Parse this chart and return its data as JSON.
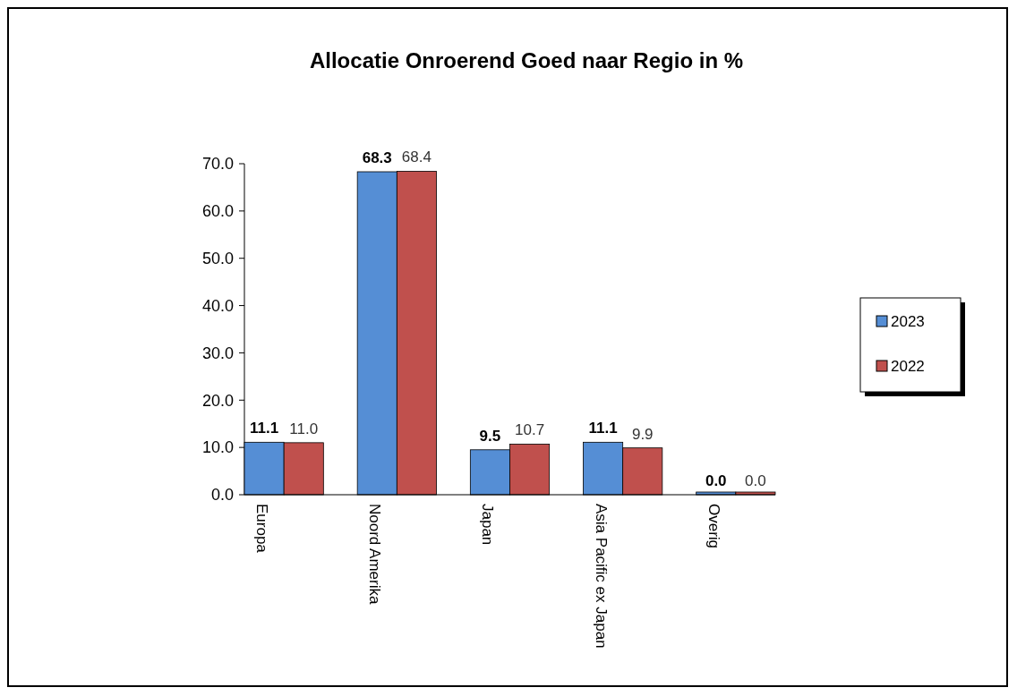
{
  "chart_data": {
    "type": "bar",
    "title": "Allocatie Onroerend Goed naar Regio in %",
    "categories": [
      "Europa",
      "Noord Amerika",
      "Japan",
      "Asia Pacific ex Japan",
      "Overig"
    ],
    "series": [
      {
        "name": "2023",
        "color": "#558ed5",
        "values": [
          11.1,
          68.3,
          9.5,
          11.1,
          0.0
        ],
        "value_labels": [
          "11.1",
          "68.3",
          "9.5",
          "11.1",
          "0.0"
        ]
      },
      {
        "name": "2022",
        "color": "#c0504d",
        "values": [
          11.0,
          68.4,
          10.7,
          9.9,
          0.0
        ],
        "value_labels": [
          "11.0",
          "68.4",
          "10.7",
          "9.9",
          "0.0"
        ]
      }
    ],
    "ylim": [
      0,
      70
    ],
    "yticks": [
      {
        "value": 0,
        "label": "0.0"
      },
      {
        "value": 10,
        "label": "10.0"
      },
      {
        "value": 20,
        "label": "20.0"
      },
      {
        "value": 30,
        "label": "30.0"
      },
      {
        "value": 40,
        "label": "40.0"
      },
      {
        "value": 50,
        "label": "50.0"
      },
      {
        "value": 60,
        "label": "60.0"
      },
      {
        "value": 70,
        "label": "70.0"
      }
    ],
    "grid": false,
    "legend": "right"
  }
}
